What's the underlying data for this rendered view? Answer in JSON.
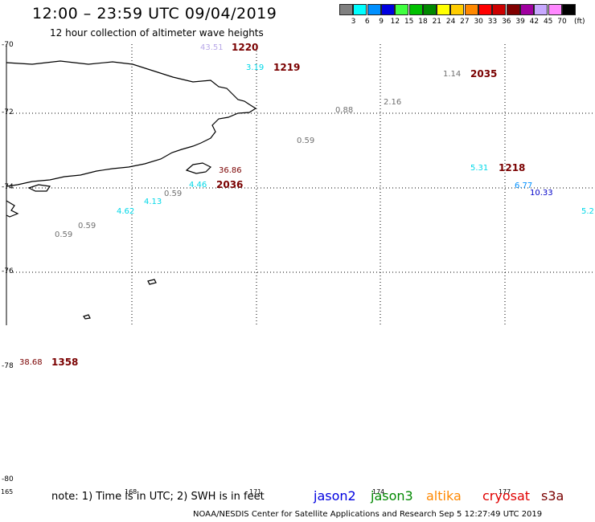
{
  "header": {
    "title": "12:00 – 23:59 UTC 09/04/2019",
    "subtitle": "12 hour collection of altimeter wave heights"
  },
  "legend": {
    "unit": "(ft)",
    "swatches": [
      {
        "label": "3",
        "color": "#808080"
      },
      {
        "label": "6",
        "color": "#00ffff"
      },
      {
        "label": "9",
        "color": "#0090ff"
      },
      {
        "label": "12",
        "color": "#0000e0"
      },
      {
        "label": "15",
        "color": "#40ff40"
      },
      {
        "label": "18",
        "color": "#00c000"
      },
      {
        "label": "21",
        "color": "#008800"
      },
      {
        "label": "24",
        "color": "#ffff00"
      },
      {
        "label": "27",
        "color": "#ffcc00"
      },
      {
        "label": "30",
        "color": "#ff8800"
      },
      {
        "label": "33",
        "color": "#ff0000"
      },
      {
        "label": "36",
        "color": "#cc0000"
      },
      {
        "label": "39",
        "color": "#800000"
      },
      {
        "label": "42",
        "color": "#a000a0"
      },
      {
        "label": "45",
        "color": "#c8a8ff"
      },
      {
        "label": "70",
        "color": "#ff88ff"
      },
      {
        "label": "",
        "color": "#000000"
      }
    ]
  },
  "axes": {
    "lat_labels": [
      "-70",
      "-72",
      "-74",
      "-76",
      "-78",
      "-80"
    ],
    "lon_labels": [
      "165",
      "168",
      "171",
      "174",
      "177"
    ]
  },
  "observations": [
    {
      "value": "43.51",
      "color": "#b8a8e8"
    },
    {
      "value": "3.19",
      "color": "#00d8e8"
    },
    {
      "value": "1.14",
      "color": "#707070"
    },
    {
      "value": "0.88",
      "color": "#707070"
    },
    {
      "value": "2.16",
      "color": "#707070"
    },
    {
      "value": "0.59",
      "color": "#707070"
    },
    {
      "value": "36.86",
      "color": "#7a0000"
    },
    {
      "value": "4.46",
      "color": "#00d8e8"
    },
    {
      "value": "0.59",
      "color": "#707070"
    },
    {
      "value": "4.13",
      "color": "#00d8e8"
    },
    {
      "value": "4.62",
      "color": "#00d8e8"
    },
    {
      "value": "0.59",
      "color": "#707070"
    },
    {
      "value": "0.59",
      "color": "#707070"
    },
    {
      "value": "5.31",
      "color": "#00d8e8"
    },
    {
      "value": "6.77",
      "color": "#0090ff"
    },
    {
      "value": "10.33",
      "color": "#0000c8"
    },
    {
      "value": "5.2",
      "color": "#00d8e8"
    },
    {
      "value": "38.68",
      "color": "#7a0000"
    }
  ],
  "pass_times": [
    "1220",
    "1219",
    "2035",
    "1218",
    "2036",
    "1358"
  ],
  "footer": {
    "note": "note:  1) Time is in UTC;  2) SWH is in feet",
    "satellites": [
      {
        "name": "jason2",
        "color": "#0000e0"
      },
      {
        "name": "jason3",
        "color": "#008800"
      },
      {
        "name": "altika",
        "color": "#ff8800"
      },
      {
        "name": "cryosat",
        "color": "#e00000"
      },
      {
        "name": "s3a",
        "color": "#7a0000"
      }
    ],
    "credit": "NOAA/NESDIS Center for Satellite Applications and Research     Sep  5 12:27:49 UTC 2019"
  }
}
